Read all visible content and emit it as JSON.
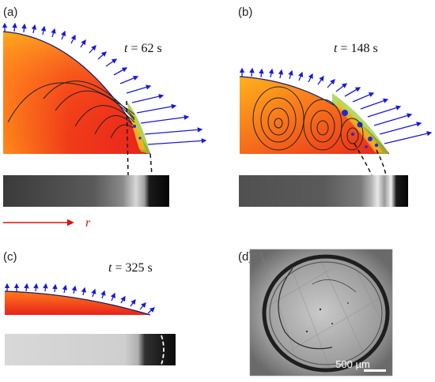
{
  "panels": {
    "a": {
      "label": "(a)",
      "time": "62 s"
    },
    "b": {
      "label": "(b)",
      "time": "148 s"
    },
    "c": {
      "label": "(c)",
      "time": "325 s"
    },
    "d": {
      "label": "(d)",
      "scale_bar": "500 µm"
    }
  },
  "time_variable": "t",
  "time_equals": " = ",
  "axis_label": "r",
  "colors": {
    "arrow": "#1a1ad8",
    "fluid_inner": "#e8231c",
    "fluid_outer": "#ffa51a",
    "edge_deposit": "#9acd32",
    "particle": "#1e2bd6",
    "axis_arrow": "#e01010"
  }
}
